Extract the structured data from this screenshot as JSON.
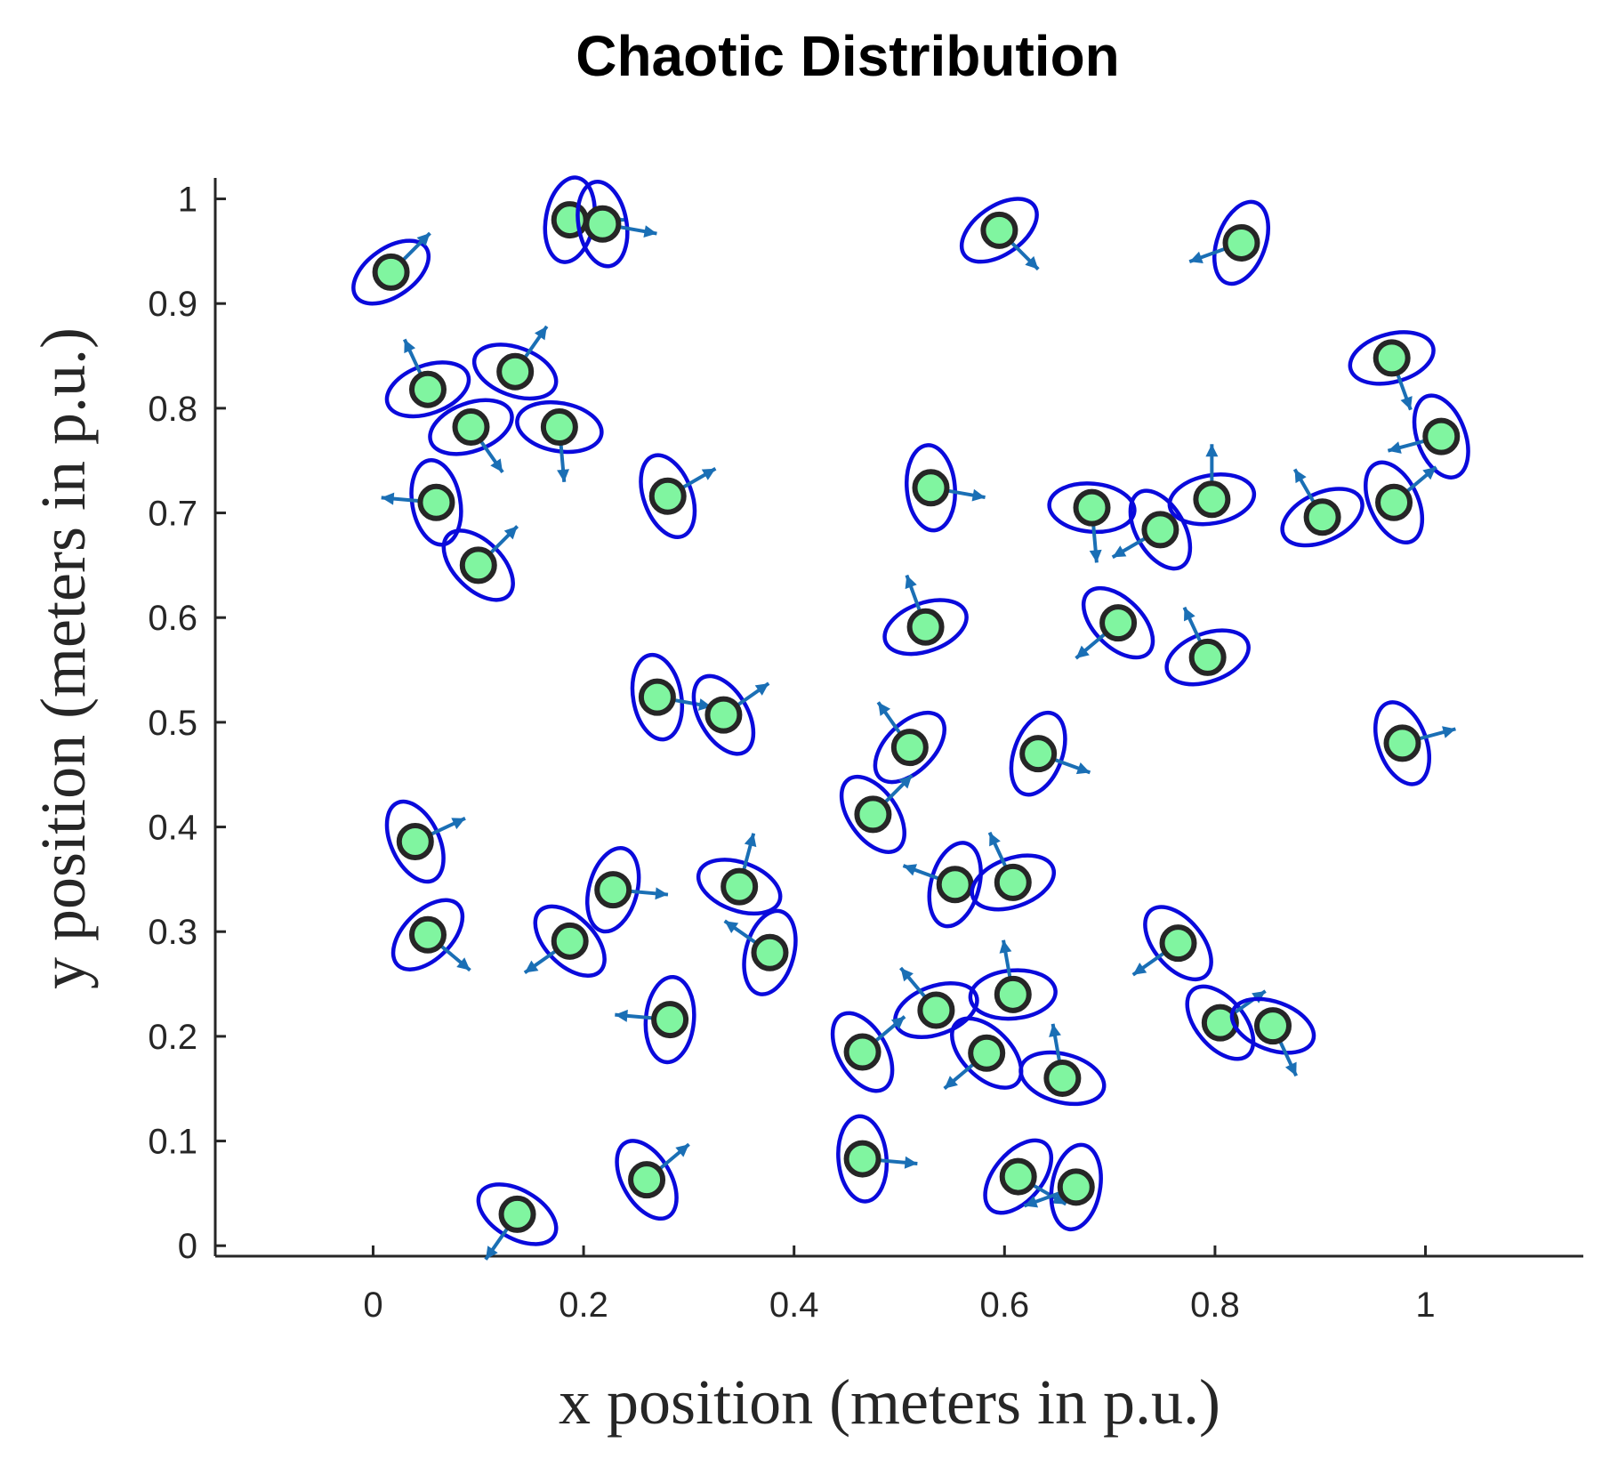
{
  "chart_data": {
    "type": "scatter",
    "title": "Chaotic Distribution",
    "xlabel": "x position (meters in p.u.)",
    "ylabel": "y position (meters in p.u.)",
    "xlim": [
      -0.15,
      1.15
    ],
    "ylim": [
      -0.01,
      1.02
    ],
    "xticks": [
      0,
      0.2,
      0.4,
      0.6,
      0.8,
      1
    ],
    "xtick_labels": [
      "0",
      "0.2",
      "0.4",
      "0.6",
      "0.8",
      "1"
    ],
    "yticks": [
      0,
      0.1,
      0.2,
      0.3,
      0.4,
      0.5,
      0.6,
      0.7,
      0.8,
      0.9,
      1
    ],
    "ytick_labels": [
      "0",
      "0.1",
      "0.2",
      "0.3",
      "0.4",
      "0.5",
      "0.6",
      "0.7",
      "0.8",
      "0.9",
      "1"
    ],
    "grid": false,
    "marker_fill": "#80f5a0",
    "ellipse_color": "#0a0adc",
    "arrow_color": "#1a6fb5",
    "points": [
      {
        "x": 0.017,
        "y": 0.93,
        "heading_deg": 45
      },
      {
        "x": 0.187,
        "y": 0.98,
        "heading_deg": 0
      },
      {
        "x": 0.218,
        "y": 0.976,
        "heading_deg": -10
      },
      {
        "x": 0.595,
        "y": 0.97,
        "heading_deg": -45
      },
      {
        "x": 0.825,
        "y": 0.958,
        "heading_deg": 200
      },
      {
        "x": 0.052,
        "y": 0.818,
        "heading_deg": 115
      },
      {
        "x": 0.135,
        "y": 0.835,
        "heading_deg": 55
      },
      {
        "x": 0.093,
        "y": 0.782,
        "heading_deg": -55
      },
      {
        "x": 0.177,
        "y": 0.782,
        "heading_deg": -85
      },
      {
        "x": 0.968,
        "y": 0.848,
        "heading_deg": -70
      },
      {
        "x": 1.015,
        "y": 0.773,
        "heading_deg": 195
      },
      {
        "x": 0.06,
        "y": 0.71,
        "heading_deg": 175
      },
      {
        "x": 0.1,
        "y": 0.65,
        "heading_deg": 45
      },
      {
        "x": 0.28,
        "y": 0.716,
        "heading_deg": 30
      },
      {
        "x": 0.53,
        "y": 0.724,
        "heading_deg": -10
      },
      {
        "x": 0.683,
        "y": 0.705,
        "heading_deg": -85
      },
      {
        "x": 0.748,
        "y": 0.684,
        "heading_deg": 210
      },
      {
        "x": 0.797,
        "y": 0.713,
        "heading_deg": 90
      },
      {
        "x": 0.902,
        "y": 0.696,
        "heading_deg": 120
      },
      {
        "x": 0.97,
        "y": 0.71,
        "heading_deg": 40
      },
      {
        "x": 0.525,
        "y": 0.591,
        "heading_deg": 110
      },
      {
        "x": 0.708,
        "y": 0.595,
        "heading_deg": 220
      },
      {
        "x": 0.793,
        "y": 0.562,
        "heading_deg": 115
      },
      {
        "x": 0.27,
        "y": 0.524,
        "heading_deg": -10
      },
      {
        "x": 0.333,
        "y": 0.507,
        "heading_deg": 35
      },
      {
        "x": 0.51,
        "y": 0.476,
        "heading_deg": 125
      },
      {
        "x": 0.632,
        "y": 0.47,
        "heading_deg": -20
      },
      {
        "x": 0.978,
        "y": 0.48,
        "heading_deg": 15
      },
      {
        "x": 0.475,
        "y": 0.412,
        "heading_deg": 45
      },
      {
        "x": 0.04,
        "y": 0.386,
        "heading_deg": 25
      },
      {
        "x": 0.228,
        "y": 0.34,
        "heading_deg": -5
      },
      {
        "x": 0.348,
        "y": 0.343,
        "heading_deg": 75
      },
      {
        "x": 0.553,
        "y": 0.345,
        "heading_deg": 160
      },
      {
        "x": 0.608,
        "y": 0.347,
        "heading_deg": 115
      },
      {
        "x": 0.052,
        "y": 0.297,
        "heading_deg": -40
      },
      {
        "x": 0.187,
        "y": 0.291,
        "heading_deg": 215
      },
      {
        "x": 0.377,
        "y": 0.28,
        "heading_deg": 145
      },
      {
        "x": 0.765,
        "y": 0.289,
        "heading_deg": 215
      },
      {
        "x": 0.282,
        "y": 0.216,
        "heading_deg": 175
      },
      {
        "x": 0.535,
        "y": 0.225,
        "heading_deg": 130
      },
      {
        "x": 0.608,
        "y": 0.24,
        "heading_deg": 100
      },
      {
        "x": 0.805,
        "y": 0.213,
        "heading_deg": 35
      },
      {
        "x": 0.855,
        "y": 0.21,
        "heading_deg": -65
      },
      {
        "x": 0.465,
        "y": 0.185,
        "heading_deg": 40
      },
      {
        "x": 0.583,
        "y": 0.184,
        "heading_deg": 220
      },
      {
        "x": 0.655,
        "y": 0.16,
        "heading_deg": 100
      },
      {
        "x": 0.465,
        "y": 0.083,
        "heading_deg": -5
      },
      {
        "x": 0.613,
        "y": 0.066,
        "heading_deg": -30
      },
      {
        "x": 0.668,
        "y": 0.056,
        "heading_deg": 200
      },
      {
        "x": 0.26,
        "y": 0.063,
        "heading_deg": 40
      },
      {
        "x": 0.137,
        "y": 0.03,
        "heading_deg": 235
      }
    ],
    "ellipse_orientations_deg": [
      35,
      80,
      100,
      35,
      70,
      20,
      160,
      20,
      170,
      15,
      110,
      100,
      135,
      110,
      95,
      175,
      120,
      10,
      25,
      115,
      20,
      135,
      20,
      100,
      120,
      45,
      70,
      110,
      125,
      115,
      75,
      160,
      75,
      20,
      45,
      135,
      75,
      130,
      85,
      20,
      5,
      130,
      160,
      120,
      135,
      165,
      95,
      50,
      80,
      120,
      150
    ]
  }
}
